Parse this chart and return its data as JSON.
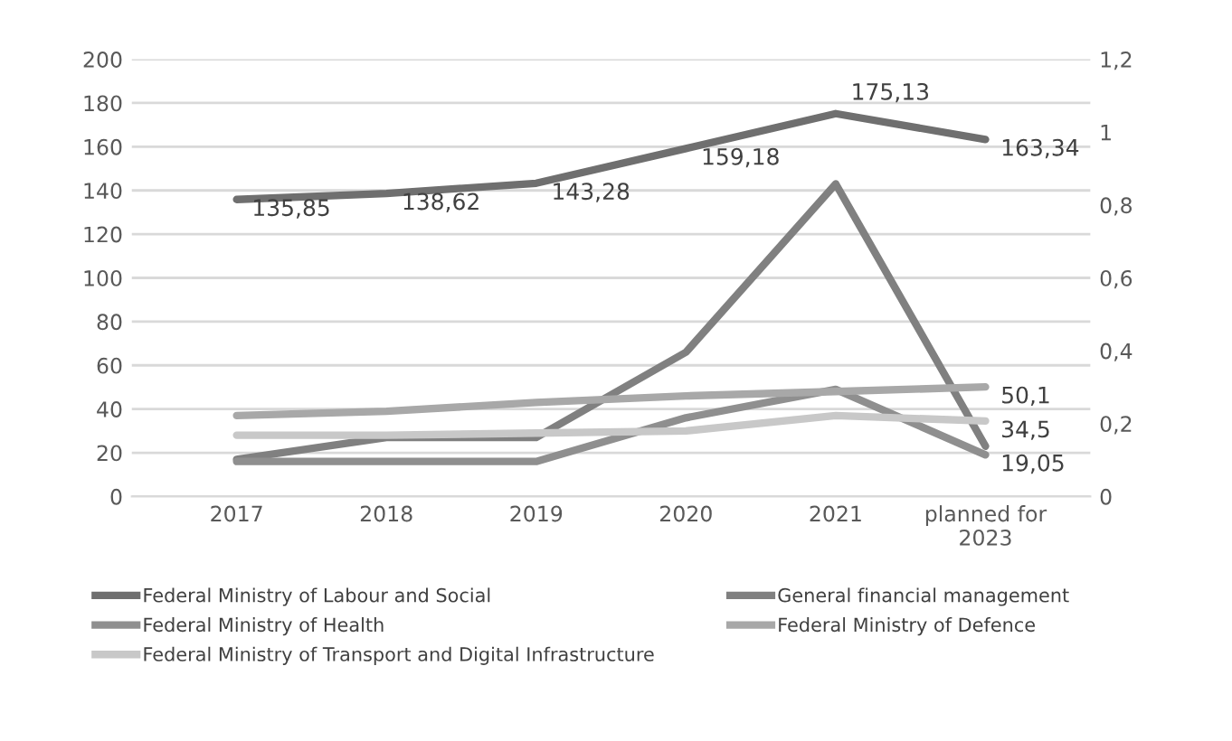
{
  "chart_data": {
    "type": "line",
    "categories": [
      "2017",
      "2018",
      "2019",
      "2020",
      "2021",
      "planned for\n2023"
    ],
    "series": [
      {
        "name": "Federal Ministry of Labour and Social",
        "color": "#6f6f6f",
        "values": [
          135.85,
          138.62,
          143.28,
          159.18,
          175.13,
          163.34
        ],
        "value_labels": [
          "135,85",
          "138,62",
          "143,28",
          "159,18",
          "175,13",
          "163,34"
        ]
      },
      {
        "name": "General financial management",
        "color": "#808080",
        "values": [
          17,
          27,
          27,
          66,
          143,
          23
        ]
      },
      {
        "name": "Federal Ministry of Health",
        "color": "#8f8f8f",
        "values": [
          16,
          16,
          16,
          36,
          49,
          19.05
        ],
        "value_labels": [
          null,
          null,
          null,
          null,
          null,
          "19,05"
        ]
      },
      {
        "name": "Federal Ministry of Defence",
        "color": "#a8a8a8",
        "values": [
          37,
          39,
          43,
          46,
          48,
          50.1
        ],
        "value_labels": [
          null,
          null,
          null,
          null,
          null,
          "50,1"
        ]
      },
      {
        "name": "Federal Ministry of Transport and Digital Infrastructure",
        "color": "#c8c8c8",
        "values": [
          28,
          28,
          29,
          30,
          37,
          34.5
        ],
        "value_labels": [
          null,
          null,
          null,
          null,
          null,
          "34,5"
        ]
      }
    ],
    "ylim": [
      0,
      200
    ],
    "yticks": [
      0,
      20,
      40,
      60,
      80,
      100,
      120,
      140,
      160,
      180,
      200
    ],
    "y2lim": [
      0,
      1.2
    ],
    "y2ticks": [
      {
        "value": 0,
        "label": "0"
      },
      {
        "value": 0.2,
        "label": "0,2"
      },
      {
        "value": 0.4,
        "label": "0,4"
      },
      {
        "value": 0.6,
        "label": "0,6"
      },
      {
        "value": 0.8,
        "label": "0,8"
      },
      {
        "value": 1,
        "label": "1"
      },
      {
        "value": 1.2,
        "label": "1,2"
      }
    ],
    "grid": "y",
    "legend": "bottom",
    "marker": "none",
    "line_style": "solid"
  }
}
